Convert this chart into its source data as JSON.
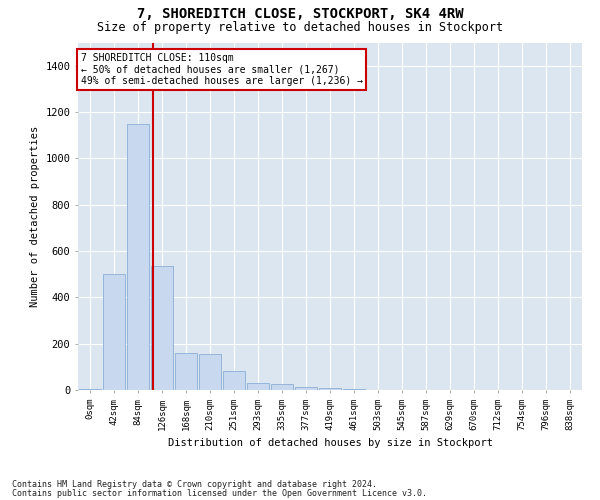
{
  "title": "7, SHOREDITCH CLOSE, STOCKPORT, SK4 4RW",
  "subtitle": "Size of property relative to detached houses in Stockport",
  "xlabel": "Distribution of detached houses by size in Stockport",
  "ylabel": "Number of detached properties",
  "bar_color": "#c8d8ee",
  "bar_edge_color": "#8aafd4",
  "plot_bg_color": "#dce6f0",
  "fig_bg_color": "#ffffff",
  "grid_color": "#ffffff",
  "categories": [
    "0sqm",
    "42sqm",
    "84sqm",
    "126sqm",
    "168sqm",
    "210sqm",
    "251sqm",
    "293sqm",
    "335sqm",
    "377sqm",
    "419sqm",
    "461sqm",
    "503sqm",
    "545sqm",
    "587sqm",
    "629sqm",
    "670sqm",
    "712sqm",
    "754sqm",
    "796sqm",
    "838sqm"
  ],
  "values": [
    5,
    500,
    1150,
    535,
    160,
    155,
    80,
    30,
    25,
    15,
    10,
    5,
    0,
    0,
    0,
    0,
    0,
    0,
    0,
    0,
    0
  ],
  "ylim": [
    0,
    1500
  ],
  "yticks": [
    0,
    200,
    400,
    600,
    800,
    1000,
    1200,
    1400
  ],
  "property_line_x": 2.62,
  "annotation_text": "7 SHOREDITCH CLOSE: 110sqm\n← 50% of detached houses are smaller (1,267)\n49% of semi-detached houses are larger (1,236) →",
  "annotation_box_color": "#ffffff",
  "annotation_box_edge": "#cc0000",
  "line_color": "#cc0000",
  "footer1": "Contains HM Land Registry data © Crown copyright and database right 2024.",
  "footer2": "Contains public sector information licensed under the Open Government Licence v3.0."
}
